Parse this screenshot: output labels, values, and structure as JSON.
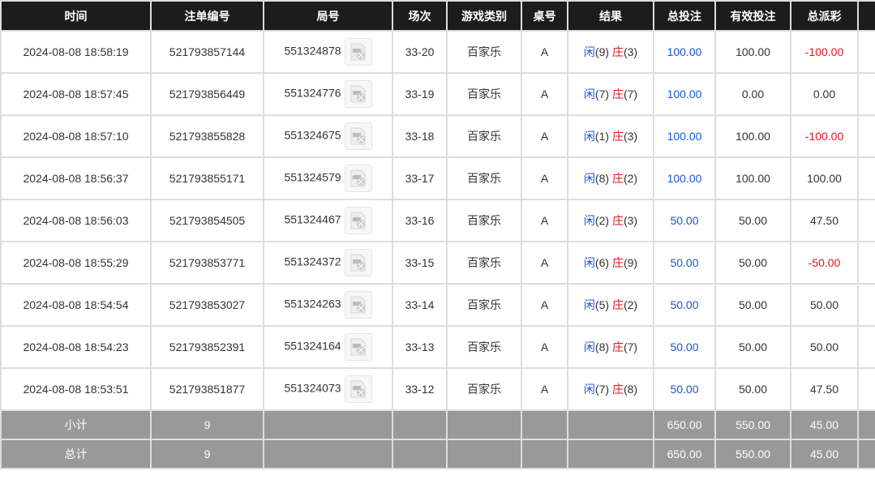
{
  "headers": [
    "时间",
    "注单编号",
    "局号",
    "场次",
    "游戏类别",
    "桌号",
    "结果",
    "总投注",
    "有效投注",
    "总派彩",
    ""
  ],
  "result_labels": {
    "player": "闲",
    "banker": "庄"
  },
  "colors": {
    "header_bg": "#1c1c1c",
    "summary_bg": "#999999",
    "blue": "#1a56d6",
    "red": "#e0141e"
  },
  "rows": [
    {
      "time": "2024-08-08 18:58:19",
      "bet_id": "521793857144",
      "round": "551324878",
      "shoe": "33-20",
      "game": "百家乐",
      "table": "A",
      "player": "(9)",
      "banker": "(3)",
      "total_bet": "100.00",
      "valid_bet": "100.00",
      "payout": "-100.00",
      "payout_negative": true
    },
    {
      "time": "2024-08-08 18:57:45",
      "bet_id": "521793856449",
      "round": "551324776",
      "shoe": "33-19",
      "game": "百家乐",
      "table": "A",
      "player": "(7)",
      "banker": "(7)",
      "total_bet": "100.00",
      "valid_bet": "0.00",
      "payout": "0.00",
      "payout_negative": false
    },
    {
      "time": "2024-08-08 18:57:10",
      "bet_id": "521793855828",
      "round": "551324675",
      "shoe": "33-18",
      "game": "百家乐",
      "table": "A",
      "player": "(1)",
      "banker": "(3)",
      "total_bet": "100.00",
      "valid_bet": "100.00",
      "payout": "-100.00",
      "payout_negative": true
    },
    {
      "time": "2024-08-08 18:56:37",
      "bet_id": "521793855171",
      "round": "551324579",
      "shoe": "33-17",
      "game": "百家乐",
      "table": "A",
      "player": "(8)",
      "banker": "(2)",
      "total_bet": "100.00",
      "valid_bet": "100.00",
      "payout": "100.00",
      "payout_negative": false
    },
    {
      "time": "2024-08-08 18:56:03",
      "bet_id": "521793854505",
      "round": "551324467",
      "shoe": "33-16",
      "game": "百家乐",
      "table": "A",
      "player": "(2)",
      "banker": "(3)",
      "total_bet": "50.00",
      "valid_bet": "50.00",
      "payout": "47.50",
      "payout_negative": false
    },
    {
      "time": "2024-08-08 18:55:29",
      "bet_id": "521793853771",
      "round": "551324372",
      "shoe": "33-15",
      "game": "百家乐",
      "table": "A",
      "player": "(6)",
      "banker": "(9)",
      "total_bet": "50.00",
      "valid_bet": "50.00",
      "payout": "-50.00",
      "payout_negative": true
    },
    {
      "time": "2024-08-08 18:54:54",
      "bet_id": "521793853027",
      "round": "551324263",
      "shoe": "33-14",
      "game": "百家乐",
      "table": "A",
      "player": "(5)",
      "banker": "(2)",
      "total_bet": "50.00",
      "valid_bet": "50.00",
      "payout": "50.00",
      "payout_negative": false
    },
    {
      "time": "2024-08-08 18:54:23",
      "bet_id": "521793852391",
      "round": "551324164",
      "shoe": "33-13",
      "game": "百家乐",
      "table": "A",
      "player": "(8)",
      "banker": "(7)",
      "total_bet": "50.00",
      "valid_bet": "50.00",
      "payout": "50.00",
      "payout_negative": false
    },
    {
      "time": "2024-08-08 18:53:51",
      "bet_id": "521793851877",
      "round": "551324073",
      "shoe": "33-12",
      "game": "百家乐",
      "table": "A",
      "player": "(7)",
      "banker": "(8)",
      "total_bet": "50.00",
      "valid_bet": "50.00",
      "payout": "47.50",
      "payout_negative": false
    }
  ],
  "summary": [
    {
      "label": "小计",
      "count": "9",
      "total_bet": "650.00",
      "valid_bet": "550.00",
      "payout": "45.00"
    },
    {
      "label": "总计",
      "count": "9",
      "total_bet": "650.00",
      "valid_bet": "550.00",
      "payout": "45.00"
    }
  ]
}
